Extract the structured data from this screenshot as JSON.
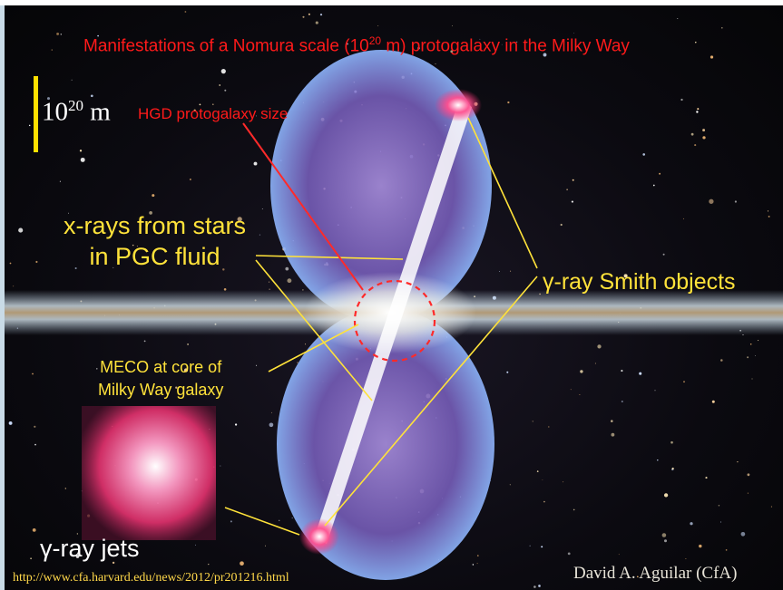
{
  "title": {
    "text": "Manifestations of a Nomura scale (10",
    "exp": "20",
    "text_end": " m) protogalaxy in the Milky Way"
  },
  "scale_bar": {
    "base": "10",
    "exp": "20",
    "unit": " m"
  },
  "labels": {
    "hgd": "HGD protogalaxy size",
    "xrays_line1": "x-rays from stars",
    "xrays_line2": "in PGC fluid",
    "gamma_smith": "γ-ray Smith objects",
    "meco_line1": "MECO at core of",
    "meco_line2": "Milky Way galaxy",
    "gamma_jets": "γ-ray jets"
  },
  "footer": {
    "url": "http://www.cfa.harvard.edu/news/2012/pr201216.html",
    "credit": "David A. Aguilar (CfA)"
  },
  "colors": {
    "title_red": "#ff1a1a",
    "annotation_yellow": "#ffe23a",
    "bubble_purple": "#8a72c8",
    "bubble_edge_blue": "#7fb3ff",
    "jet_pink": "#ff3d86"
  }
}
